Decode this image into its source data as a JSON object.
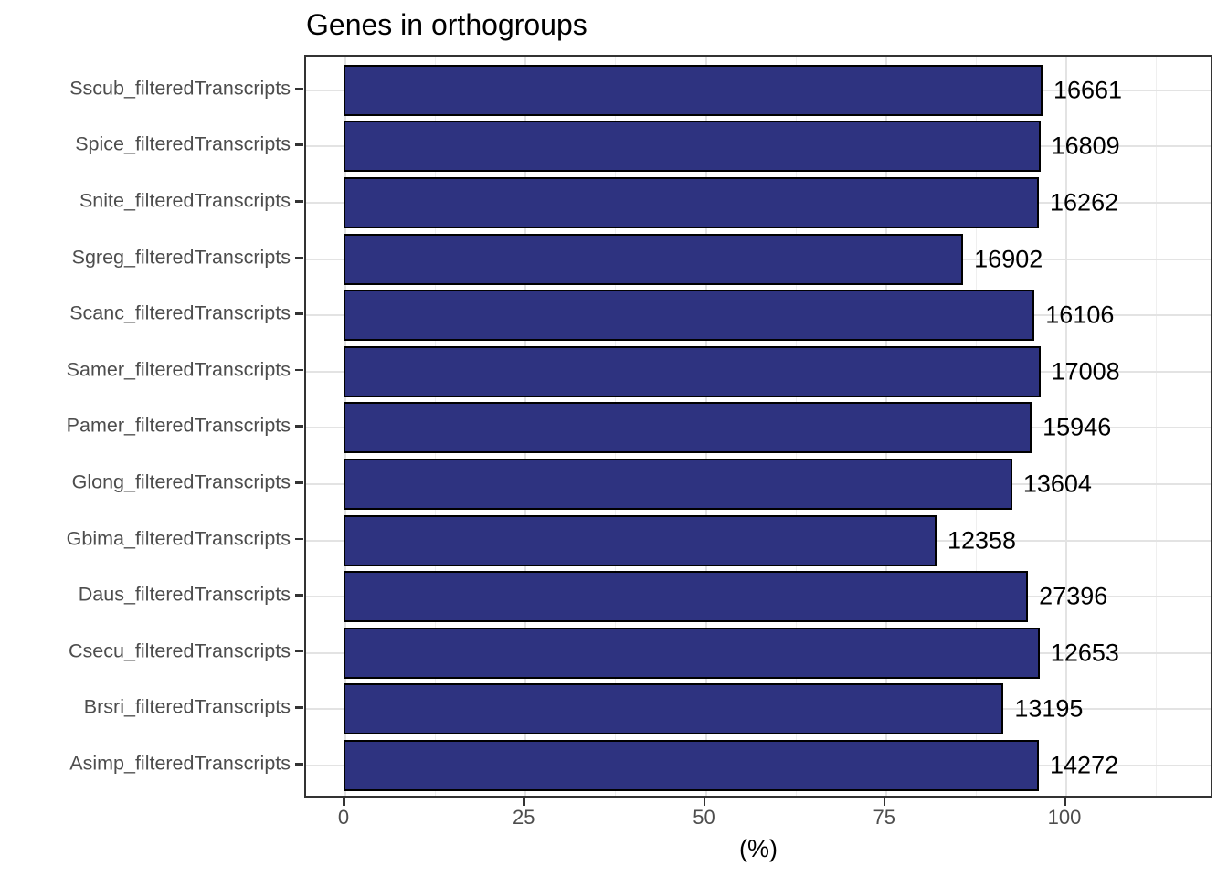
{
  "chart_data": {
    "type": "bar",
    "orientation": "horizontal",
    "title": "Genes in orthogroups",
    "xlabel": "(%)",
    "ylabel": "",
    "x_ticks": [
      0,
      25,
      50,
      75,
      100
    ],
    "x_minor_ticks": [
      12.5,
      37.5,
      62.5,
      87.5,
      112.5
    ],
    "xlim": [
      -5.5,
      120.5
    ],
    "grid": true,
    "legend": false,
    "categories": [
      "Sscub_filteredTranscripts",
      "Spice_filteredTranscripts",
      "Snite_filteredTranscripts",
      "Sgreg_filteredTranscripts",
      "Scanc_filteredTranscripts",
      "Samer_filteredTranscripts",
      "Pamer_filteredTranscripts",
      "Glong_filteredTranscripts",
      "Gbima_filteredTranscripts",
      "Daus_filteredTranscripts",
      "Csecu_filteredTranscripts",
      "Brsri_filteredTranscripts",
      "Asimp_filteredTranscripts"
    ],
    "values_percent": [
      96.7,
      96.4,
      96.2,
      85.7,
      95.6,
      96.4,
      95.2,
      92.5,
      82.0,
      94.7,
      96.3,
      91.3,
      96.2
    ],
    "bar_labels": [
      "16661",
      "16809",
      "16262",
      "16902",
      "16106",
      "17008",
      "15946",
      "13604",
      "12358",
      "27396",
      "12653",
      "13195",
      "14272"
    ],
    "colors": {
      "bar_fill": "#2e3380",
      "bar_stroke": "#000000",
      "grid_major": "#e3e3e3",
      "grid_minor": "#efefef",
      "panel_border": "#333333",
      "axis_text": "#4d4d4d",
      "label_text": "#000000",
      "background": "#ffffff"
    }
  }
}
